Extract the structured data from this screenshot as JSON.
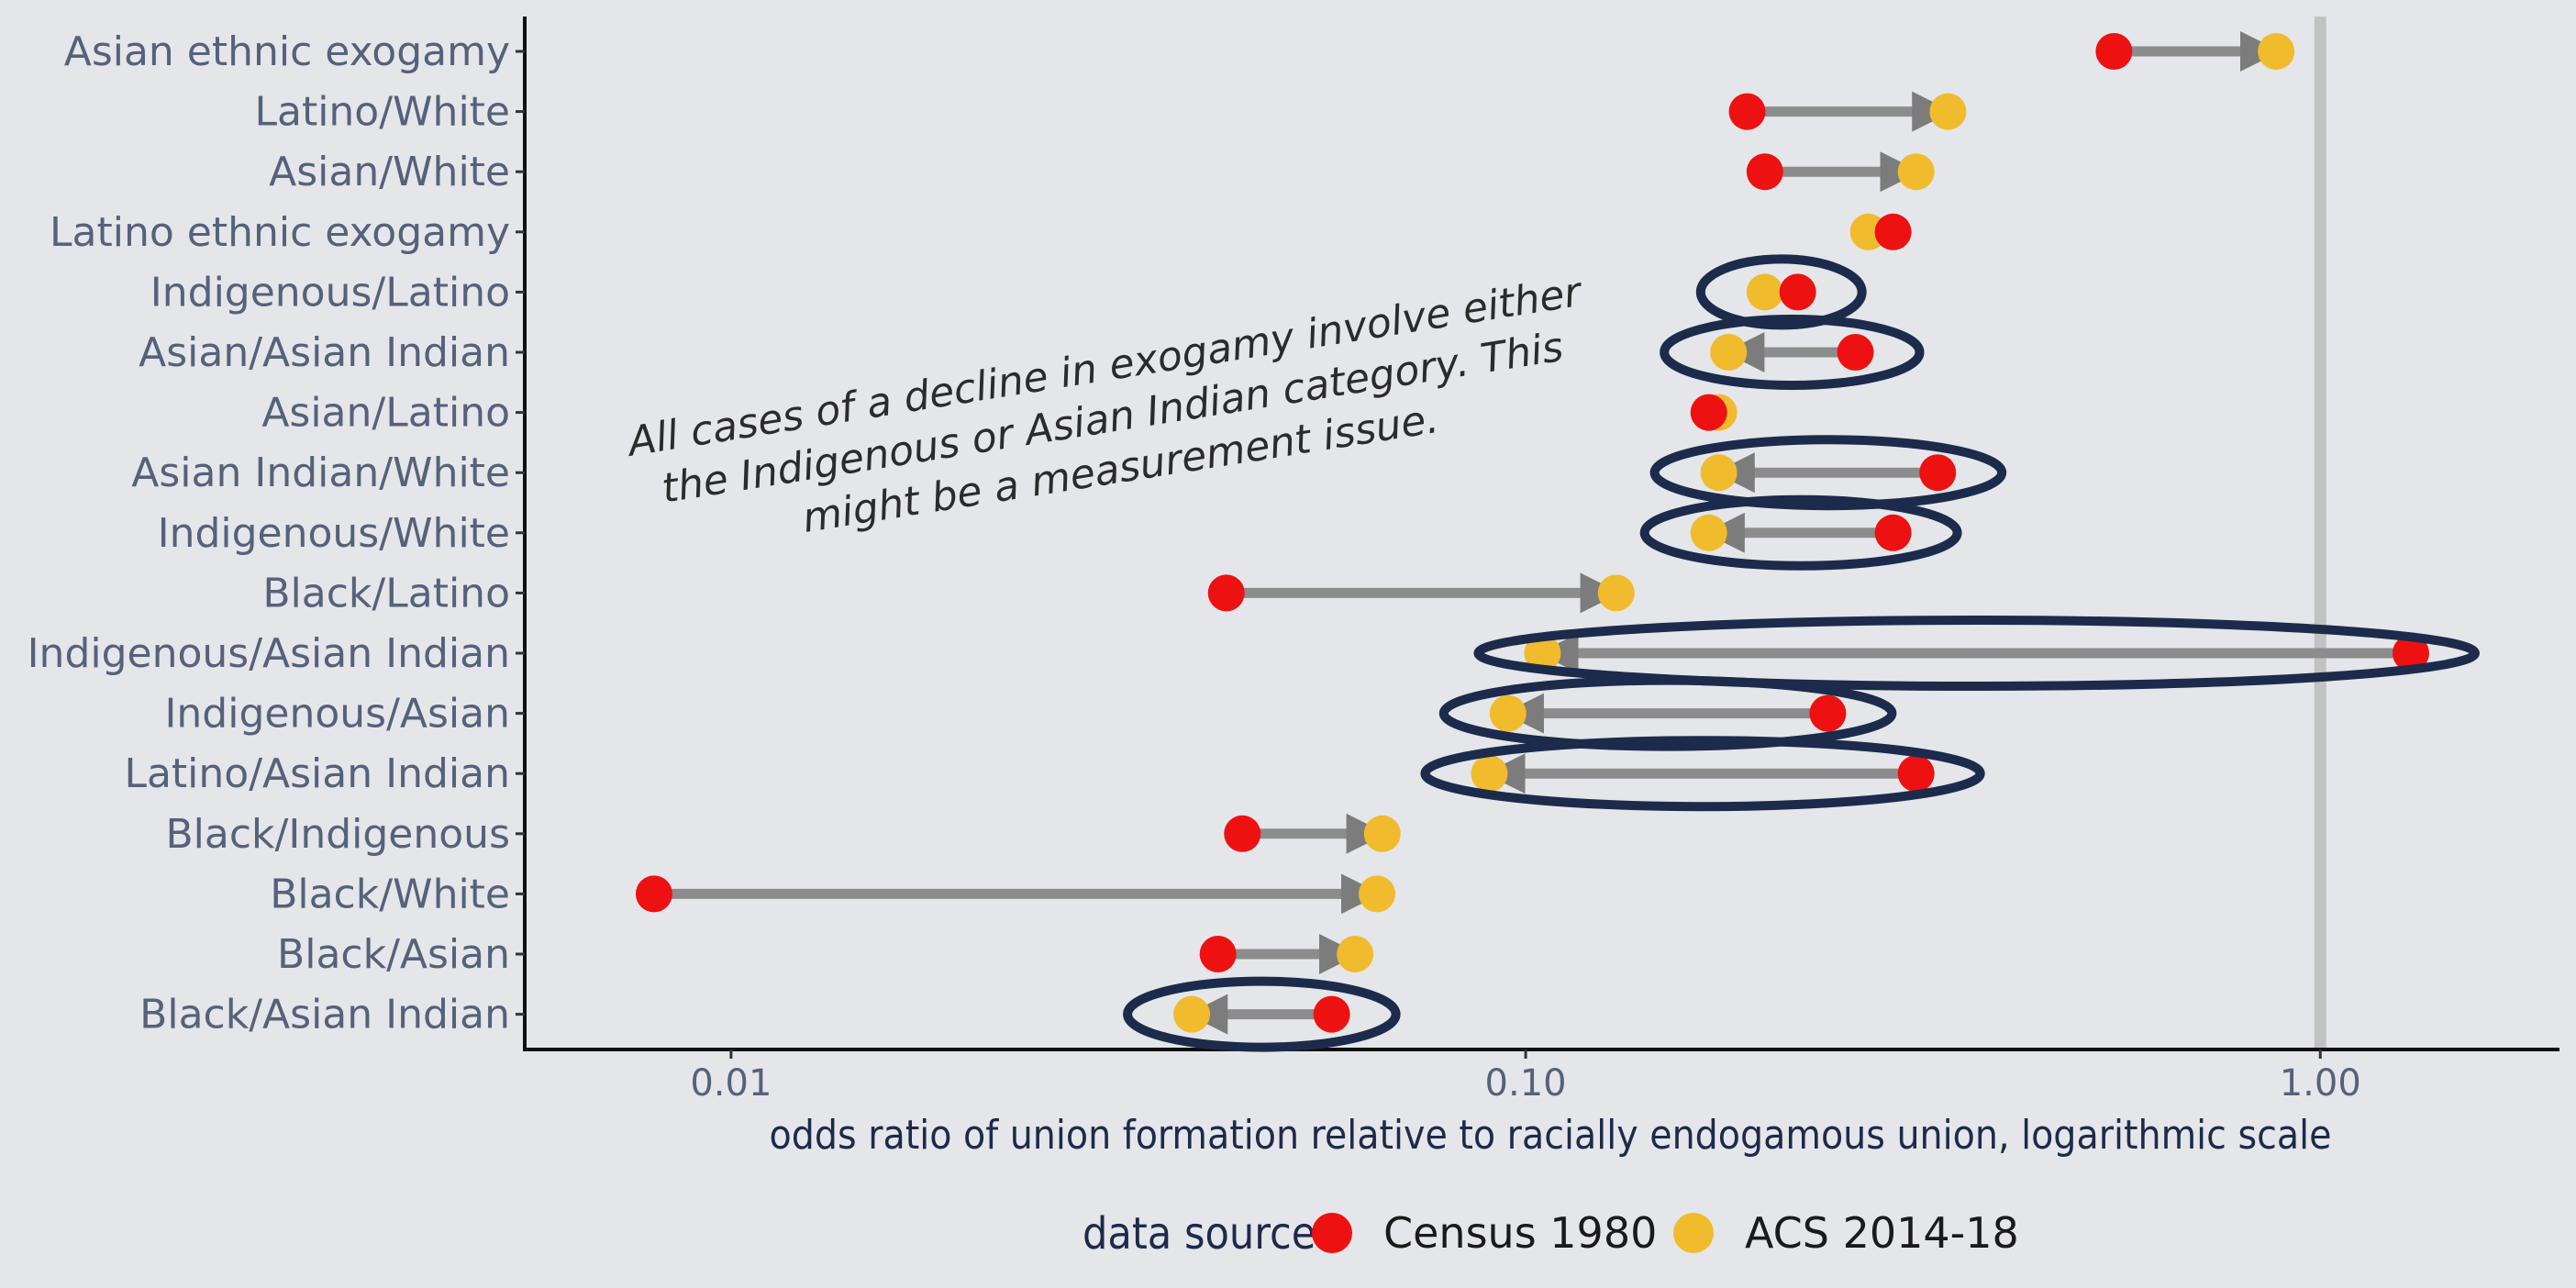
{
  "chart_data": {
    "type": "dumbbell",
    "x_scale": "log",
    "xlabel": "odds ratio of union formation relative to racially endogamous union, logarithmic scale",
    "xlim": [
      0.0055,
      2.0
    ],
    "x_ticks": [
      {
        "value": 0.01,
        "label": "0.01"
      },
      {
        "value": 0.1,
        "label": "0.10"
      },
      {
        "value": 1.0,
        "label": "1.00"
      }
    ],
    "reference_line": 1.0,
    "grid": false,
    "legend": {
      "title": "data source",
      "position": "bottom",
      "items": [
        {
          "label": "Census 1980",
          "color": "#ee1111"
        },
        {
          "label": "ACS 2014-18",
          "color": "#f0bb2d"
        }
      ]
    },
    "categories": [
      "Asian ethnic exogamy",
      "Latino/White",
      "Asian/White",
      "Latino ethnic exogamy",
      "Indigenous/Latino",
      "Asian/Asian Indian",
      "Asian/Latino",
      "Asian Indian/White",
      "Indigenous/White",
      "Black/Latino",
      "Indigenous/Asian Indian",
      "Indigenous/Asian",
      "Latino/Asian Indian",
      "Black/Indigenous",
      "Black/White",
      "Black/Asian",
      "Black/Asian Indian"
    ],
    "series": [
      {
        "name": "Census 1980",
        "values": [
          0.55,
          0.19,
          0.2,
          0.29,
          0.22,
          0.26,
          0.17,
          0.33,
          0.29,
          0.042,
          1.3,
          0.24,
          0.31,
          0.044,
          0.008,
          0.041,
          0.057
        ]
      },
      {
        "name": "ACS 2014-18",
        "values": [
          0.88,
          0.34,
          0.31,
          0.27,
          0.2,
          0.18,
          0.175,
          0.175,
          0.17,
          0.13,
          0.105,
          0.095,
          0.09,
          0.066,
          0.065,
          0.061,
          0.038
        ]
      }
    ],
    "highlighted": [
      "Indigenous/Latino",
      "Asian/Asian Indian",
      "Asian Indian/White",
      "Indigenous/White",
      "Indigenous/Asian Indian",
      "Indigenous/Asian",
      "Latino/Asian Indian",
      "Black/Asian Indian"
    ],
    "annotation": {
      "lines": [
        "All cases of a decline in exogamy involve either",
        "the Indigenous or Asian Indian category. This",
        "might be a measurement issue."
      ]
    },
    "colors": {
      "background": "#e5e6ea",
      "arrow": "#8c8c8c",
      "highlight_ellipse": "#1c2b4c",
      "reference_line": "#c2c2c2"
    }
  }
}
